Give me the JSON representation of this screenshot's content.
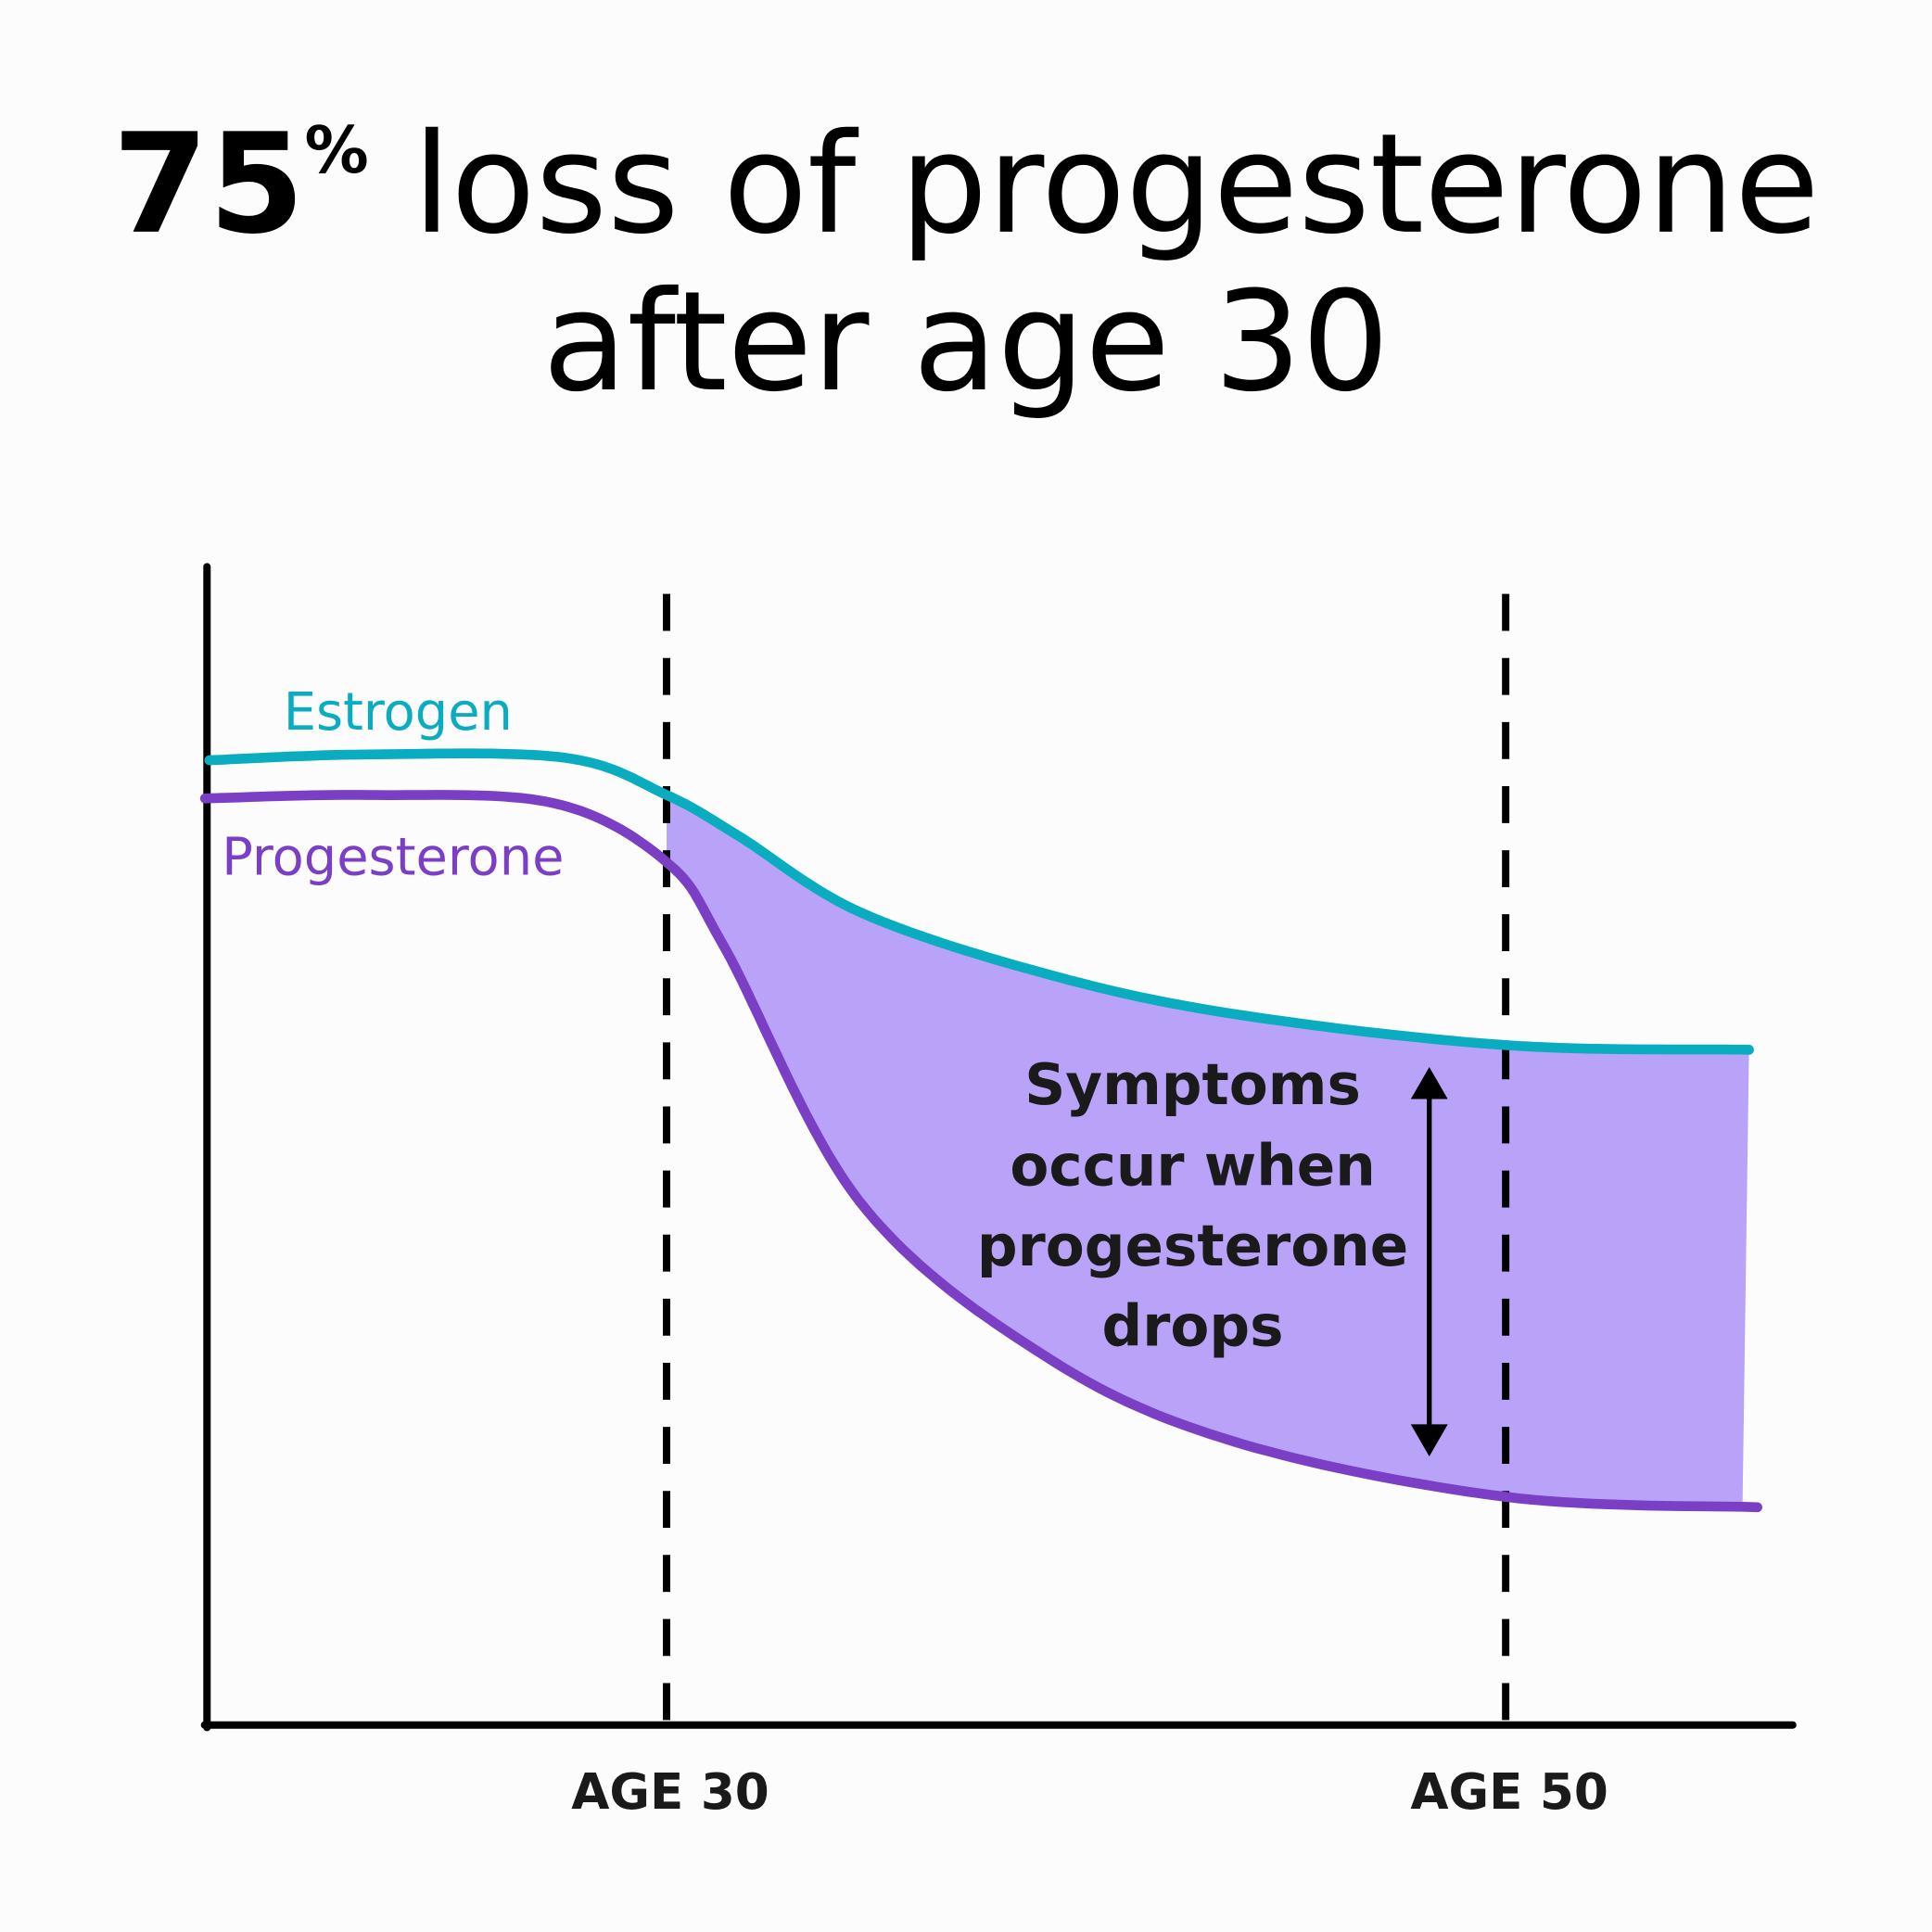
{
  "chart_data": {
    "type": "line",
    "title": {
      "big": "75",
      "pct": "%",
      "line1_rest": " loss of progesterone",
      "line2": "after age 30"
    },
    "xlabel": "",
    "ylabel": "",
    "x_unit": "age (years)",
    "xlim": [
      19,
      57
    ],
    "ylim": [
      0,
      100
    ],
    "grid": false,
    "reference_lines": [
      {
        "x": 30,
        "label": "AGE 30"
      },
      {
        "x": 50,
        "label": "AGE 50"
      }
    ],
    "series": [
      {
        "name": "Estrogen",
        "color": "#0aacc0",
        "x": [
          19.1,
          22.9,
          27.6,
          30,
          31.7,
          34.6,
          39,
          43.5,
          50,
          55.8
        ],
        "y": [
          83.3,
          83.8,
          83.5,
          80.3,
          76.8,
          70.2,
          64.9,
          61.4,
          58.7,
          58.3
        ]
      },
      {
        "name": "Progesterone",
        "color": "#7a3fc4",
        "x": [
          19,
          22.9,
          27.3,
          30,
          31.4,
          34.6,
          39,
          43.5,
          50,
          56
        ],
        "y": [
          80,
          80.3,
          79.6,
          74.5,
          67,
          45.2,
          31.9,
          24.5,
          19.7,
          18.8
        ]
      }
    ],
    "shaded_region": {
      "between": [
        "Estrogen",
        "Progesterone"
      ],
      "from_x": 30,
      "to_x": 55.8,
      "color": "#b9a3f8"
    },
    "annotation": {
      "lines": [
        "Symptoms",
        "occur when",
        "progesterone",
        "drops"
      ],
      "arrow": "double-headed vertical"
    }
  }
}
